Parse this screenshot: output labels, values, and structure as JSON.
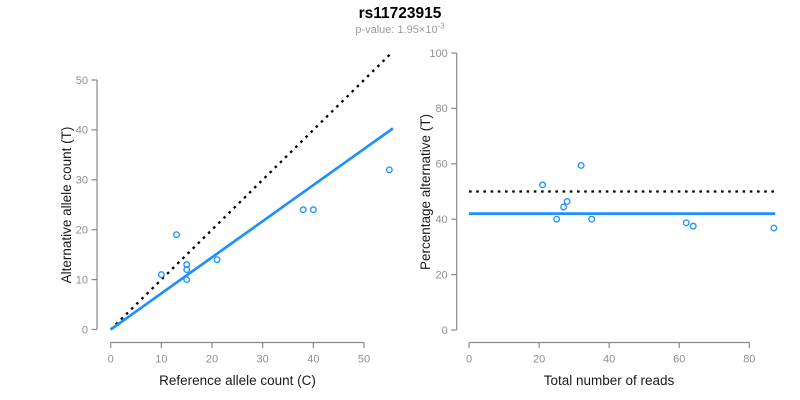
{
  "title": "rs11723915",
  "subtitle": {
    "base": "p-value: 1.95×10",
    "exponent": "-3"
  },
  "colors": {
    "accent_blue": "#1E90FF",
    "reference_black": "#000000",
    "axis_gray": "#898989",
    "tick_label_gray": "#8f8f8f",
    "subtitle_gray": "#9a9a9a"
  },
  "chart_data": [
    {
      "type": "scatter",
      "xlabel": "Reference allele count (C)",
      "ylabel": "Alternative allele count (T)",
      "xticks": [
        0,
        10,
        20,
        30,
        40,
        50
      ],
      "yticks": [
        0,
        10,
        20,
        30,
        40,
        50
      ],
      "xlim": [
        0,
        55.7
      ],
      "ylim": [
        0,
        55.7
      ],
      "grid": false,
      "points": [
        [
          10,
          11
        ],
        [
          13,
          19
        ],
        [
          15,
          13
        ],
        [
          15,
          12
        ],
        [
          15,
          10
        ],
        [
          21,
          14
        ],
        [
          38,
          24
        ],
        [
          40,
          24
        ],
        [
          55,
          32
        ]
      ],
      "lines": [
        {
          "name": "identity-line",
          "style": "dotted",
          "color": "#000000",
          "from": [
            0,
            0
          ],
          "to": [
            55.7,
            55.7
          ]
        },
        {
          "name": "fit-line",
          "style": "solid",
          "color": "#1E90FF",
          "from": [
            0,
            0
          ],
          "to": [
            55.7,
            40.3
          ]
        }
      ]
    },
    {
      "type": "scatter",
      "xlabel": "Total number of reads",
      "ylabel": "Percentage alternative (T)",
      "xticks": [
        0,
        20,
        40,
        60,
        80
      ],
      "yticks": [
        0,
        20,
        40,
        60,
        80,
        100
      ],
      "xlim": [
        0,
        87.4
      ],
      "ylim": [
        0,
        100
      ],
      "grid": false,
      "points": [
        [
          21,
          52.4
        ],
        [
          32,
          59.4
        ],
        [
          28,
          46.4
        ],
        [
          27,
          44.4
        ],
        [
          25,
          40
        ],
        [
          35,
          40
        ],
        [
          62,
          38.7
        ],
        [
          64,
          37.5
        ],
        [
          87,
          36.8
        ]
      ],
      "lines": [
        {
          "name": "expected-50pct-line",
          "style": "dotted",
          "color": "#000000",
          "from": [
            0,
            50
          ],
          "to": [
            87.4,
            50
          ]
        },
        {
          "name": "observed-ratio-line",
          "style": "solid",
          "color": "#1E90FF",
          "from": [
            0,
            42
          ],
          "to": [
            87.4,
            42
          ]
        }
      ]
    }
  ]
}
